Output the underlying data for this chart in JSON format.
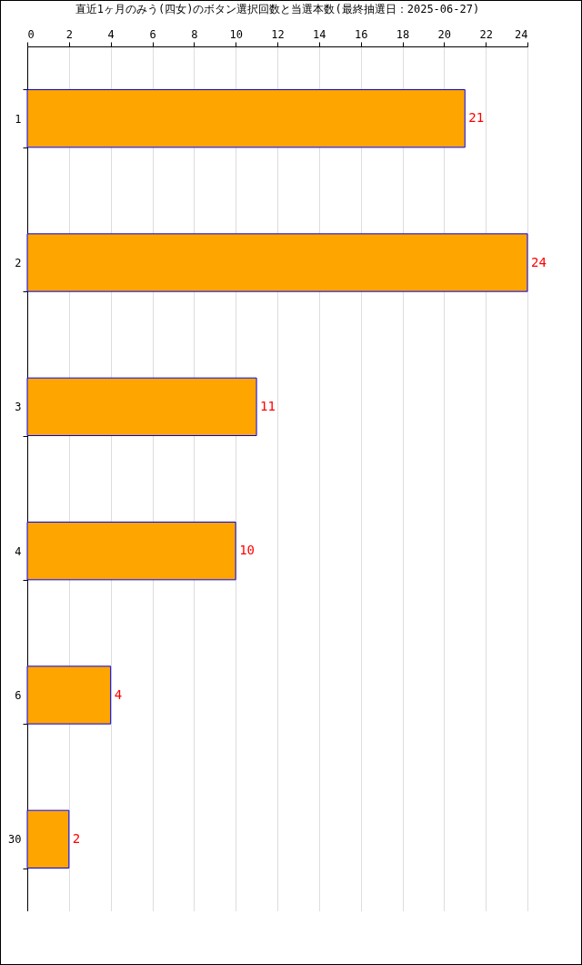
{
  "chart_data": {
    "type": "bar",
    "orientation": "horizontal",
    "title": "直近1ヶ月のみう(四女)のボタン選択回数と当選本数(最終抽選日：2025-06-27)",
    "categories": [
      "1",
      "2",
      "3",
      "4",
      "6",
      "30"
    ],
    "values": [
      21,
      24,
      11,
      10,
      4,
      2
    ],
    "color": "#ffa500",
    "xlim": [
      0,
      24
    ],
    "xticks": [
      0,
      2,
      4,
      6,
      8,
      10,
      12,
      14,
      16,
      18,
      20,
      22,
      24
    ],
    "grid": "x",
    "data_labels": true
  }
}
